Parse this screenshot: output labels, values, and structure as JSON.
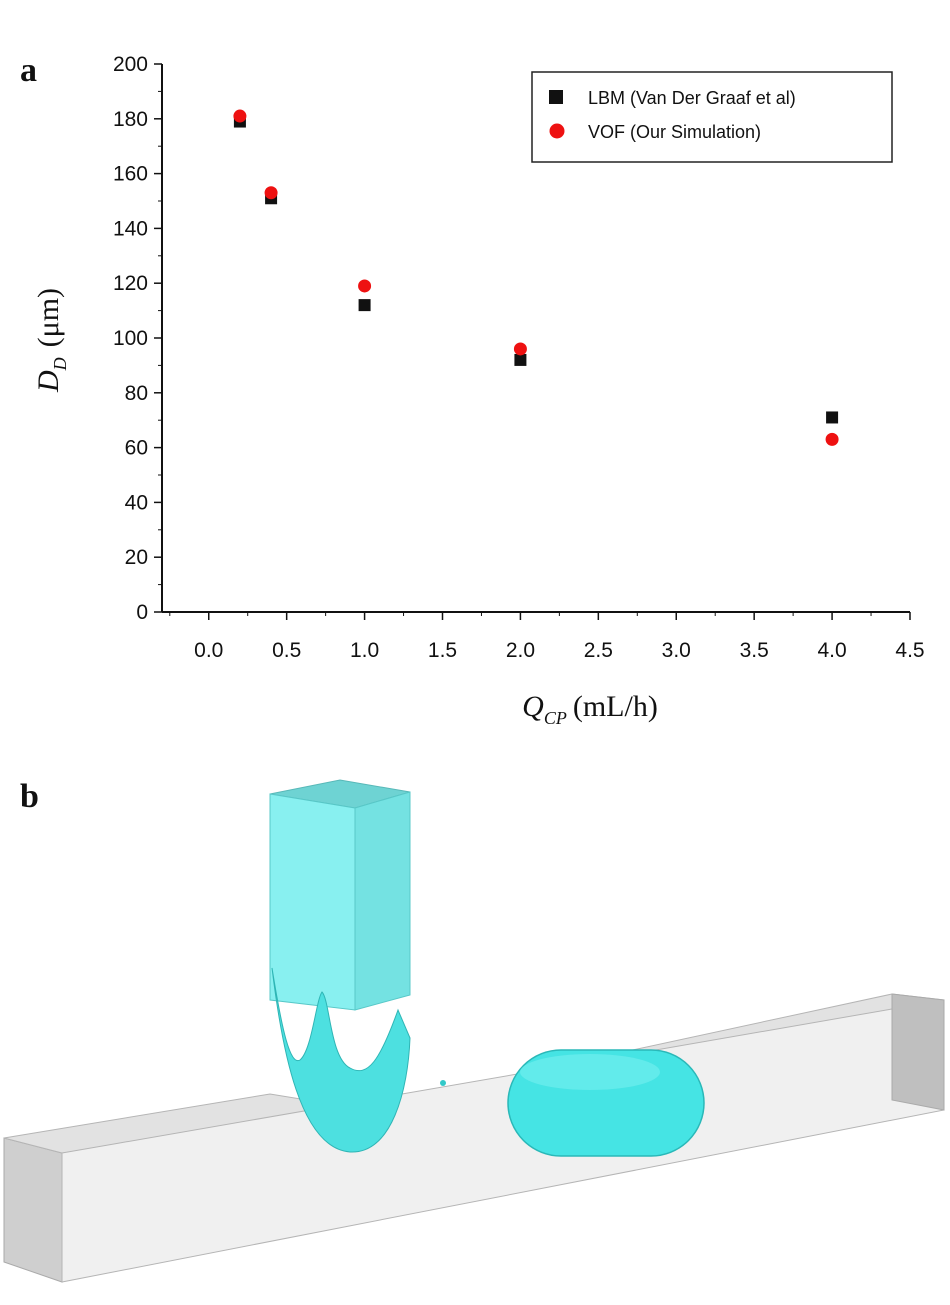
{
  "panels": {
    "a": "a",
    "b": "b"
  },
  "chart_data": {
    "type": "scatter",
    "xlabel": {
      "symbol": "Q",
      "subscript": "CP",
      "unit": "(mL/h)"
    },
    "ylabel": {
      "symbol": "D",
      "subscript": "D",
      "unit": "(μm)"
    },
    "xlim": [
      -0.3,
      4.5
    ],
    "ylim": [
      0,
      200
    ],
    "xticks": [
      "0.0",
      "0.5",
      "1.0",
      "1.5",
      "2.0",
      "2.5",
      "3.0",
      "3.5",
      "4.0",
      "4.5"
    ],
    "yticks": [
      "0",
      "20",
      "40",
      "60",
      "80",
      "100",
      "120",
      "140",
      "160",
      "180",
      "200"
    ],
    "legend_position": "top-right",
    "series": [
      {
        "name": "LBM (Van Der Graaf et al)",
        "marker": "square",
        "color": "#111111",
        "x": [
          0.2,
          0.4,
          1.0,
          2.0,
          4.0
        ],
        "y": [
          179,
          151,
          112,
          92,
          71
        ]
      },
      {
        "name": "VOF (Our Simulation)",
        "marker": "circle",
        "color": "#ee1111",
        "x": [
          0.2,
          0.4,
          1.0,
          2.0,
          4.0
        ],
        "y": [
          181,
          153,
          119,
          96,
          63
        ]
      }
    ]
  },
  "colors": {
    "fluid": "#66e6e6",
    "channel": "#d9d9d9"
  }
}
